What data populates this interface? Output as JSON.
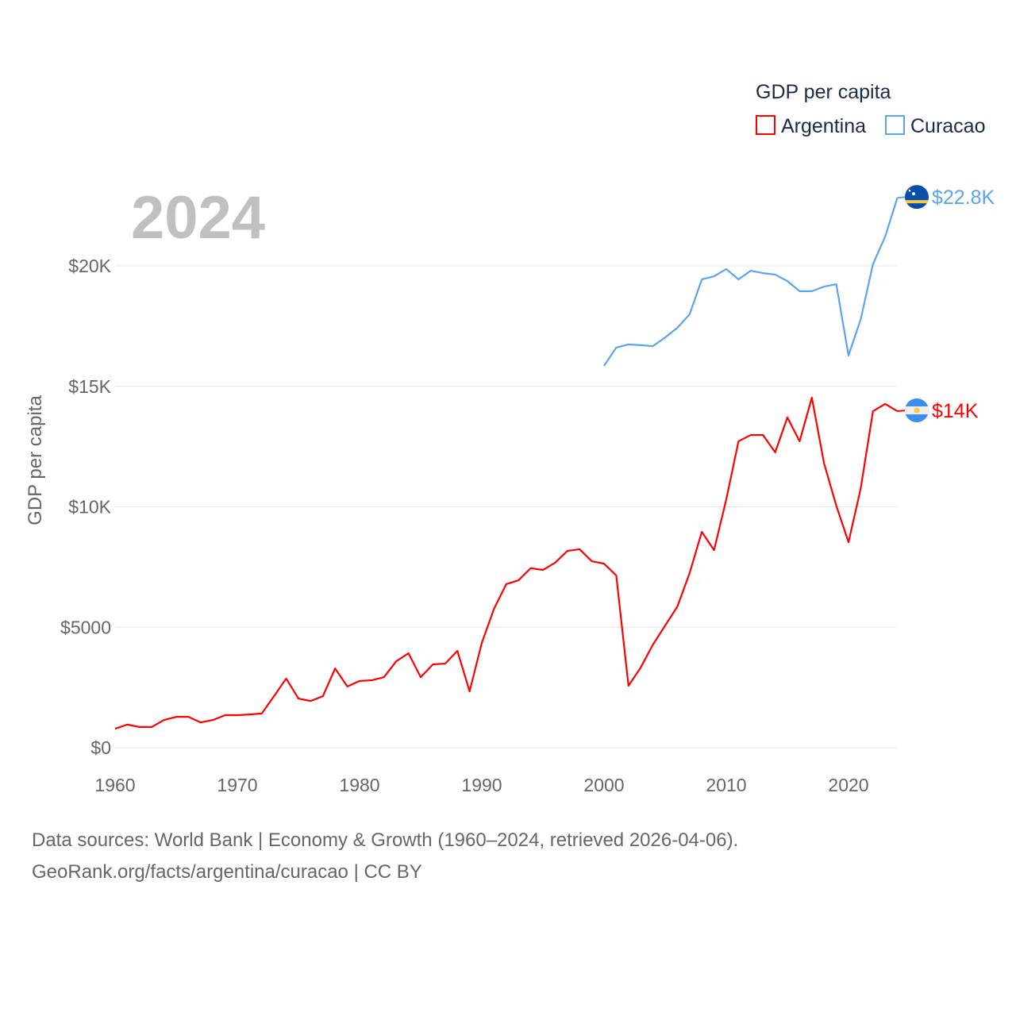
{
  "chart_data": {
    "type": "line",
    "title": "GDP per capita",
    "year_label": "2024",
    "ylabel": "GDP per capita",
    "xlabel": "",
    "xlim": [
      1960,
      2024
    ],
    "ylim": [
      0,
      23000
    ],
    "x_ticks": [
      1960,
      1970,
      1980,
      1990,
      2000,
      2010,
      2020
    ],
    "x_tick_labels": [
      "1960",
      "1970",
      "1980",
      "1990",
      "2000",
      "2010",
      "2020"
    ],
    "y_ticks": [
      0,
      5000,
      10000,
      15000,
      20000
    ],
    "y_tick_labels": [
      "$0",
      "$5000",
      "$10K",
      "$15K",
      "$20K"
    ],
    "grid": true,
    "legend_position": "top-right",
    "series": [
      {
        "name": "Argentina",
        "color": "#ff0000",
        "end_label": "$14K",
        "flag": "argentina-flag",
        "x_start": 1960,
        "values": [
          790,
          960,
          860,
          860,
          1150,
          1280,
          1280,
          1050,
          1150,
          1350,
          1350,
          1380,
          1420,
          2140,
          2870,
          2040,
          1940,
          2140,
          3290,
          2540,
          2770,
          2800,
          2930,
          3590,
          3920,
          2930,
          3460,
          3490,
          4020,
          2340,
          4350,
          5770,
          6790,
          6950,
          7450,
          7380,
          7680,
          8170,
          8240,
          7740,
          7640,
          7150,
          2570,
          3330,
          4280,
          5070,
          5860,
          7250,
          8960,
          8200,
          10310,
          12720,
          12980,
          12980,
          12260,
          13710,
          12720,
          14530,
          11800,
          10050,
          8530,
          10770,
          13970,
          14270,
          13970
        ]
      },
      {
        "name": "Curacao",
        "color": "#5ba4f0",
        "end_label": "$22.8K",
        "flag": "curacao-flag",
        "x_start": 2000,
        "values": [
          15850,
          16610,
          16740,
          16710,
          16670,
          17030,
          17430,
          17990,
          19440,
          19570,
          19870,
          19440,
          19800,
          19700,
          19640,
          19370,
          18950,
          18950,
          19140,
          19240,
          16280,
          17790,
          20070,
          21220,
          22830
        ]
      }
    ]
  },
  "footer": {
    "line1": "Data sources: World Bank | Economy & Growth (1960–2024, retrieved 2026-04-06).",
    "line2": "GeoRank.org/facts/argentina/curacao | CC BY"
  }
}
